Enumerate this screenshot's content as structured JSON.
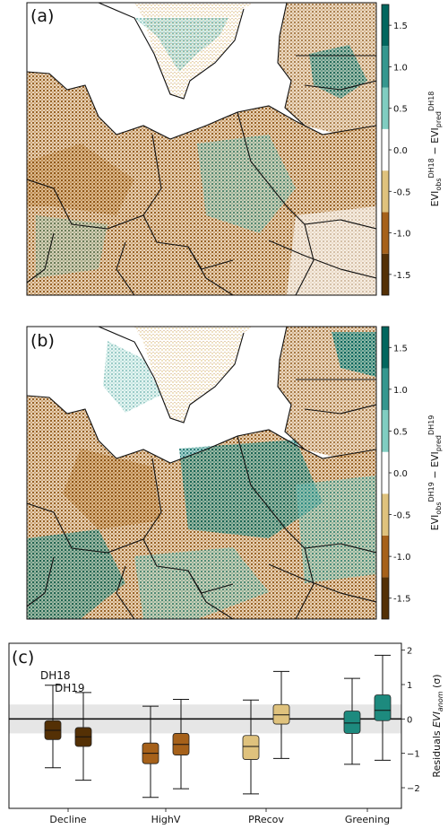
{
  "colors": {
    "brown_dark": "#543005",
    "brown_mid": "#a6611a",
    "brown_light": "#dfc27d",
    "white": "#ffffff",
    "teal_light": "#80cdc1",
    "teal_mid": "#35978f",
    "teal_dark": "#01665e",
    "band": "#e6e6e6"
  },
  "map_panels": [
    {
      "label": "(a)",
      "colorbar_label": "EVI_obs^DH18 − EVI_pred^DH18",
      "label_parts": {
        "main": "EVI",
        "obs": "obs",
        "pred": "pred",
        "year": "DH18"
      },
      "ticks": [
        1.5,
        1.0,
        0.5,
        0.0,
        -0.5,
        -1.0,
        -1.5
      ]
    },
    {
      "label": "(b)",
      "colorbar_label": "EVI_obs^DH19 − EVI_pred^DH19",
      "label_parts": {
        "main": "EVI",
        "obs": "obs",
        "pred": "pred",
        "year": "DH19"
      },
      "ticks": [
        1.5,
        1.0,
        0.5,
        0.0,
        -0.5,
        -1.0,
        -1.5
      ]
    }
  ],
  "colorbar_bins": [
    -1.75,
    -1.25,
    -0.75,
    -0.25,
    0.25,
    0.75,
    1.25,
    1.75
  ],
  "chart_data": {
    "type": "box",
    "label": "(c)",
    "categories": [
      "Decline",
      "HighV",
      "PRecov",
      "Greening"
    ],
    "series_labels": [
      "DH18",
      "DH19"
    ],
    "ylabel": "Residuals EVI_anom (σ)",
    "ylabel_parts": {
      "prefix": "Residuals ",
      "main": "EVI",
      "sub": "anom",
      "suffix": " (σ)"
    },
    "ylim": [
      -2.6,
      2.2
    ],
    "yticks": [
      2,
      1,
      0,
      -1,
      -2
    ],
    "band": [
      -0.42,
      0.42
    ],
    "boxes": [
      {
        "category": "Decline",
        "year": "DH18",
        "whislo": -1.42,
        "q1": -0.6,
        "med": -0.33,
        "q3": -0.05,
        "whishi": 0.98,
        "color": "#543005"
      },
      {
        "category": "Decline",
        "year": "DH19",
        "whislo": -1.78,
        "q1": -0.8,
        "med": -0.52,
        "q3": -0.25,
        "whishi": 0.77,
        "color": "#543005"
      },
      {
        "category": "HighV",
        "year": "DH18",
        "whislo": -2.28,
        "q1": -1.3,
        "med": -1.0,
        "q3": -0.7,
        "whishi": 0.37,
        "color": "#a6611a"
      },
      {
        "category": "HighV",
        "year": "DH19",
        "whislo": -2.03,
        "q1": -1.05,
        "med": -0.74,
        "q3": -0.42,
        "whishi": 0.57,
        "color": "#a6611a"
      },
      {
        "category": "PRecov",
        "year": "DH18",
        "whislo": -2.18,
        "q1": -1.18,
        "med": -0.8,
        "q3": -0.48,
        "whishi": 0.55,
        "color": "#dfc27d"
      },
      {
        "category": "PRecov",
        "year": "DH19",
        "whislo": -1.15,
        "q1": -0.15,
        "med": 0.12,
        "q3": 0.42,
        "whishi": 1.38,
        "color": "#dfc27d"
      },
      {
        "category": "Greening",
        "year": "DH18",
        "whislo": -1.32,
        "q1": -0.42,
        "med": -0.12,
        "q3": 0.23,
        "whishi": 1.18,
        "color": "#1d8a7e"
      },
      {
        "category": "Greening",
        "year": "DH19",
        "whislo": -1.2,
        "q1": -0.05,
        "med": 0.25,
        "q3": 0.7,
        "whishi": 1.85,
        "color": "#1d8a7e"
      }
    ]
  }
}
